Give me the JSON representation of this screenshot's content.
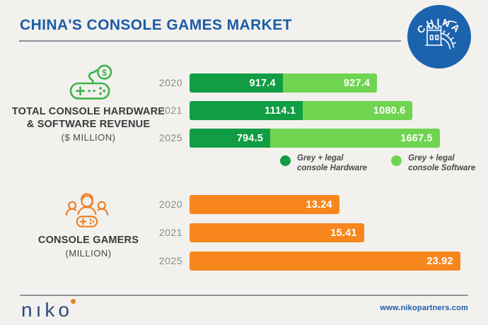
{
  "header": {
    "title": "CHINA'S CONSOLE GAMES MARKET",
    "badge_label": "CHINA"
  },
  "revenue_section": {
    "label_line1": "TOTAL CONSOLE HARDWARE",
    "label_line2": "& SOFTWARE REVENUE",
    "label_line3": "($ MILLION)"
  },
  "gamers_section": {
    "label_line1": "CONSOLE GAMERS",
    "label_line2": "(MILLION)"
  },
  "legend": {
    "hardware": {
      "line1": "Grey + legal",
      "line2": "console Hardware"
    },
    "software": {
      "line1": "Grey + legal",
      "line2": "console Software"
    }
  },
  "footer": {
    "logo_text": "nıko",
    "url": "www.nikopartners.com"
  },
  "colors": {
    "title_blue": "#1c5ca5",
    "badge_blue": "#1c63ae",
    "hardware_green": "#109d44",
    "software_green": "#6fd44f",
    "gamers_orange": "#f7871d",
    "year_gray": "#8a8a8a",
    "background": "#f2f1ee"
  },
  "chart_data": [
    {
      "type": "bar",
      "orientation": "horizontal",
      "stacked": true,
      "title": "TOTAL CONSOLE HARDWARE & SOFTWARE REVENUE",
      "unit": "$ million",
      "categories": [
        "2020",
        "2021",
        "2025"
      ],
      "series": [
        {
          "name": "Grey + legal console Hardware",
          "color": "#109d44",
          "values": [
            917.4,
            1114.1,
            794.5
          ]
        },
        {
          "name": "Grey + legal console Software",
          "color": "#6fd44f",
          "values": [
            927.4,
            1080.6,
            1667.5
          ]
        }
      ],
      "totals": [
        1844.8,
        2194.7,
        2462.0
      ],
      "legend_position": "below",
      "value_labels": "inside-white"
    },
    {
      "type": "bar",
      "orientation": "horizontal",
      "stacked": false,
      "title": "CONSOLE GAMERS",
      "unit": "million",
      "categories": [
        "2020",
        "2021",
        "2025"
      ],
      "series": [
        {
          "name": "Console gamers",
          "color": "#f7871d",
          "values": [
            13.24,
            15.41,
            23.92
          ]
        }
      ],
      "legend_position": "none",
      "value_labels": "inside-white"
    }
  ]
}
